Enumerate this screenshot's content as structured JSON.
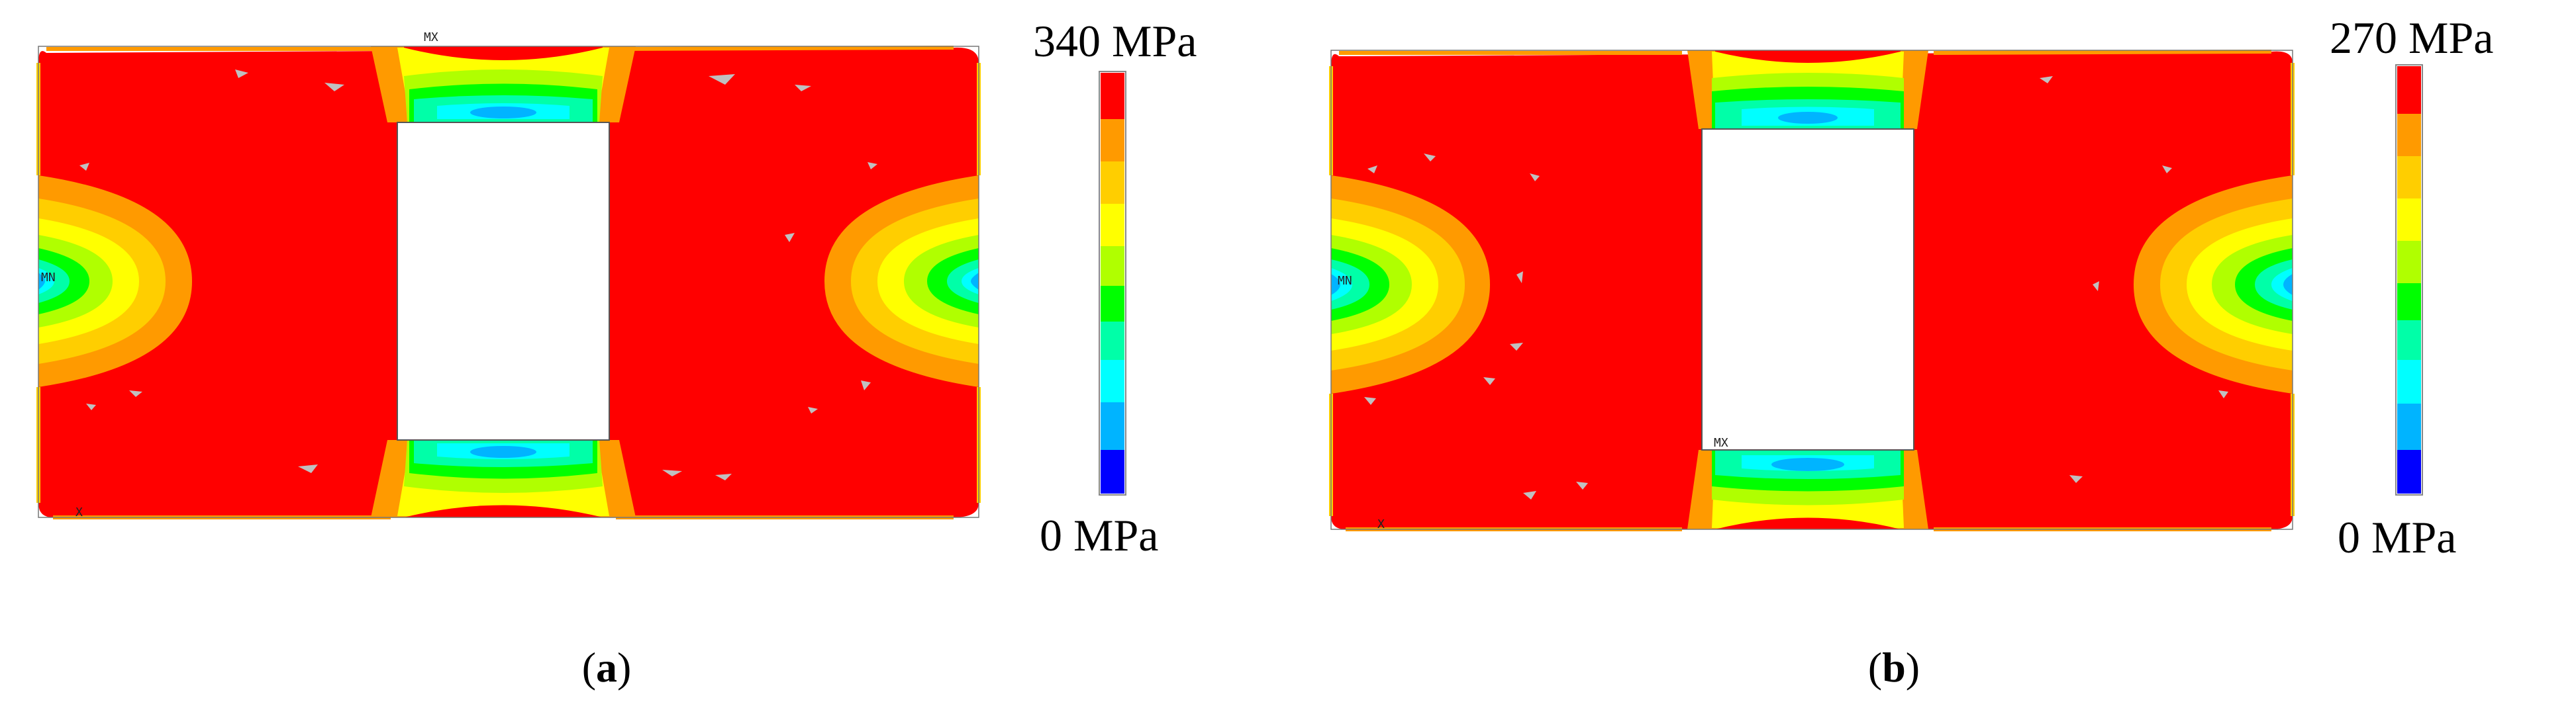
{
  "panels": [
    {
      "id": "a",
      "caption_open": "(",
      "caption_letter": "a",
      "caption_close": ")",
      "scale_max_label": "340 MPa",
      "scale_min_label": "0 MPa",
      "max_marker": "MX",
      "min_marker": "MN",
      "axis_marker": "X"
    },
    {
      "id": "b",
      "caption_open": "(",
      "caption_letter": "b",
      "caption_close": ")",
      "scale_max_label": "270 MPa",
      "scale_min_label": "0 MPa",
      "max_marker": "MX",
      "min_marker": "MN",
      "axis_marker": "X"
    }
  ],
  "colors": {
    "max": "#ff0000",
    "orange": "#ff9a00",
    "yellow_orange": "#ffce00",
    "yellow": "#ffff00",
    "yellow_green": "#b0ff00",
    "green": "#00ff00",
    "green_cyan": "#00ffa8",
    "cyan": "#00ffff",
    "sky": "#00b4ff",
    "min": "#0000ff",
    "hotspot": "#c0c0c0"
  }
}
